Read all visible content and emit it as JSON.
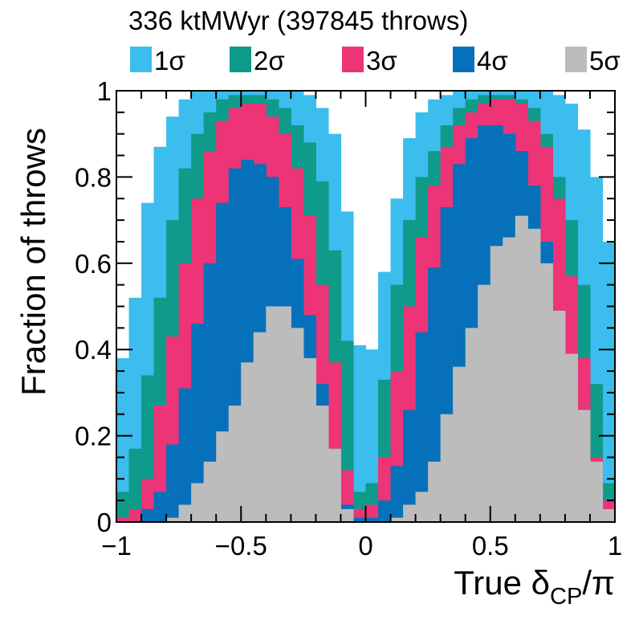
{
  "chart_data": {
    "type": "bar",
    "title": "336 ktMWyr (397845 throws)",
    "xlabel": {
      "prefix": "True δ",
      "sub": "CP",
      "suffix": "/π"
    },
    "ylabel": "Fraction of throws",
    "xlim": [
      -1,
      1
    ],
    "ylim": [
      0,
      1
    ],
    "x_ticks": [
      {
        "value": -1,
        "label": "−1"
      },
      {
        "value": -0.5,
        "label": "−0.5"
      },
      {
        "value": 0,
        "label": "0"
      },
      {
        "value": 0.5,
        "label": "0.5"
      },
      {
        "value": 1,
        "label": "1"
      }
    ],
    "y_ticks": [
      {
        "value": 0,
        "label": "0"
      },
      {
        "value": 0.2,
        "label": "0.2"
      },
      {
        "value": 0.4,
        "label": "0.4"
      },
      {
        "value": 0.6,
        "label": "0.6"
      },
      {
        "value": 0.8,
        "label": "0.8"
      },
      {
        "value": 1,
        "label": "1"
      }
    ],
    "bin_edges": [
      -1,
      -0.95,
      -0.9,
      -0.85,
      -0.8,
      -0.75,
      -0.7,
      -0.65,
      -0.6,
      -0.55,
      -0.5,
      -0.45,
      -0.4,
      -0.35,
      -0.3,
      -0.25,
      -0.2,
      -0.15,
      -0.1,
      -0.05,
      0,
      0.05,
      0.1,
      0.15,
      0.2,
      0.25,
      0.3,
      0.35,
      0.4,
      0.45,
      0.5,
      0.55,
      0.6,
      0.65,
      0.7,
      0.75,
      0.8,
      0.85,
      0.9,
      0.95,
      1
    ],
    "series": [
      {
        "name": "1σ",
        "color": "#3bbdee",
        "values": [
          0.38,
          0.52,
          0.74,
          0.87,
          0.94,
          0.98,
          1.0,
          1.0,
          1.0,
          1.0,
          1.0,
          1.0,
          1.0,
          1.0,
          1.0,
          0.99,
          0.96,
          0.9,
          0.72,
          0.41,
          0.4,
          0.58,
          0.75,
          0.89,
          0.95,
          0.98,
          0.99,
          1.0,
          1.0,
          1.0,
          1.0,
          1.0,
          1.0,
          1.0,
          1.0,
          0.99,
          0.97,
          0.91,
          0.8,
          0.65
        ]
      },
      {
        "name": "2σ",
        "color": "#0e9b8a",
        "values": [
          0.07,
          0.17,
          0.34,
          0.52,
          0.7,
          0.82,
          0.9,
          0.95,
          0.98,
          0.99,
          0.99,
          0.99,
          0.98,
          0.96,
          0.92,
          0.88,
          0.79,
          0.63,
          0.42,
          0.07,
          0.09,
          0.33,
          0.55,
          0.7,
          0.8,
          0.86,
          0.92,
          0.96,
          0.98,
          0.99,
          0.99,
          0.99,
          0.98,
          0.96,
          0.9,
          0.8,
          0.7,
          0.55,
          0.32,
          0.09
        ]
      },
      {
        "name": "3σ",
        "color": "#ec3477",
        "values": [
          0.01,
          0.03,
          0.1,
          0.27,
          0.43,
          0.6,
          0.75,
          0.86,
          0.93,
          0.96,
          0.97,
          0.97,
          0.94,
          0.9,
          0.82,
          0.71,
          0.55,
          0.37,
          0.12,
          0.03,
          0.04,
          0.15,
          0.35,
          0.5,
          0.66,
          0.78,
          0.87,
          0.92,
          0.95,
          0.97,
          0.98,
          0.98,
          0.97,
          0.93,
          0.87,
          0.75,
          0.57,
          0.38,
          0.15,
          0.05
        ]
      },
      {
        "name": "4σ",
        "color": "#0671ba",
        "values": [
          0.0,
          0.0,
          0.03,
          0.07,
          0.18,
          0.31,
          0.46,
          0.6,
          0.74,
          0.82,
          0.84,
          0.83,
          0.8,
          0.73,
          0.61,
          0.48,
          0.32,
          0.17,
          0.04,
          0.01,
          0.01,
          0.05,
          0.13,
          0.26,
          0.44,
          0.59,
          0.73,
          0.83,
          0.89,
          0.92,
          0.92,
          0.9,
          0.86,
          0.78,
          0.65,
          0.49,
          0.34,
          0.17,
          0.06,
          0.01
        ]
      },
      {
        "name": "5σ",
        "color": "#bcbcbc",
        "values": [
          0.0,
          0.0,
          0.0,
          0.0,
          0.01,
          0.04,
          0.09,
          0.14,
          0.21,
          0.27,
          0.37,
          0.44,
          0.5,
          0.5,
          0.45,
          0.38,
          0.27,
          0.17,
          0.03,
          0.0,
          0.0,
          0.0,
          0.01,
          0.04,
          0.07,
          0.14,
          0.25,
          0.36,
          0.45,
          0.55,
          0.64,
          0.66,
          0.71,
          0.68,
          0.6,
          0.49,
          0.39,
          0.26,
          0.14,
          0.03
        ]
      }
    ],
    "legend": {
      "placement": "top",
      "entries": [
        "1σ",
        "2σ",
        "3σ",
        "4σ",
        "5σ"
      ]
    },
    "grid": false
  }
}
